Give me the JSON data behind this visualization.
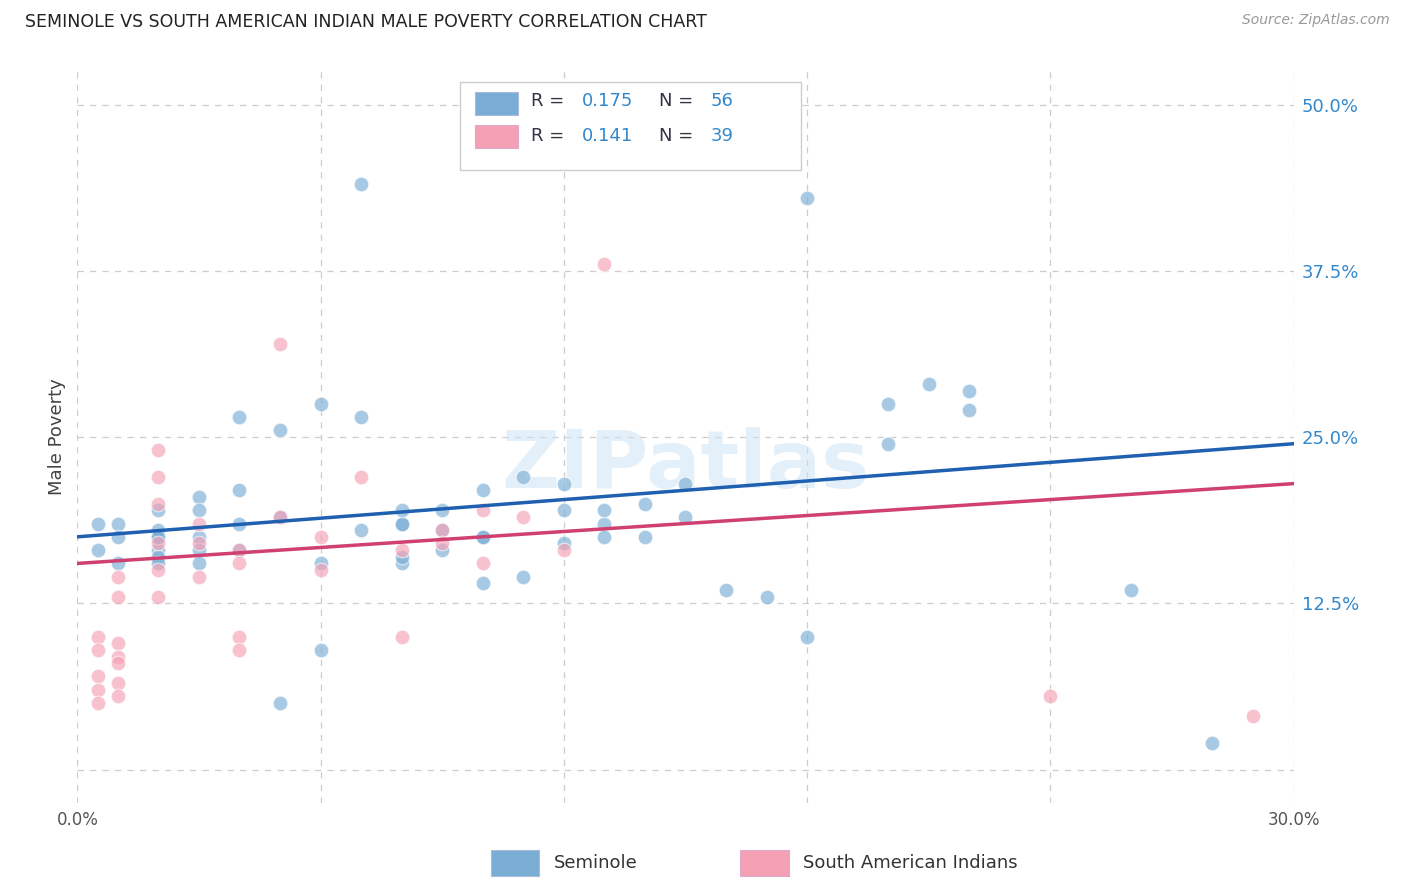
{
  "title": "SEMINOLE VS SOUTH AMERICAN INDIAN MALE POVERTY CORRELATION CHART",
  "source": "Source: ZipAtlas.com",
  "ylabel": "Male Poverty",
  "yticks": [
    0.0,
    0.125,
    0.25,
    0.375,
    0.5
  ],
  "ytick_labels": [
    "",
    "12.5%",
    "25.0%",
    "37.5%",
    "50.0%"
  ],
  "xlim": [
    0.0,
    0.3
  ],
  "ylim": [
    -0.025,
    0.525
  ],
  "legend_R_blue": "0.175",
  "legend_N_blue": "56",
  "legend_R_pink": "0.141",
  "legend_N_pink": "39",
  "blue_color": "#7aadd4",
  "pink_color": "#f4a0b5",
  "line_blue": "#2060b0",
  "line_pink": "#d04070",
  "watermark": "ZIPatlas",
  "legend_label_blue": "Seminole",
  "legend_label_pink": "South American Indians",
  "text_color_dark": "#333344",
  "text_color_blue": "#3388cc",
  "blue_x": [
    0.005,
    0.005,
    0.01,
    0.01,
    0.01,
    0.02,
    0.02,
    0.02,
    0.02,
    0.02,
    0.02,
    0.02,
    0.03,
    0.03,
    0.03,
    0.03,
    0.03,
    0.04,
    0.04,
    0.04,
    0.04,
    0.05,
    0.05,
    0.05,
    0.06,
    0.06,
    0.06,
    0.07,
    0.07,
    0.08,
    0.08,
    0.08,
    0.08,
    0.08,
    0.09,
    0.09,
    0.09,
    0.1,
    0.1,
    0.1,
    0.1,
    0.11,
    0.11,
    0.12,
    0.12,
    0.12,
    0.13,
    0.13,
    0.13,
    0.14,
    0.14,
    0.15,
    0.15,
    0.16,
    0.17,
    0.18,
    0.2,
    0.2,
    0.21,
    0.22,
    0.26,
    0.28,
    0.07,
    0.18,
    0.22
  ],
  "blue_y": [
    0.165,
    0.185,
    0.185,
    0.175,
    0.155,
    0.165,
    0.175,
    0.195,
    0.18,
    0.175,
    0.16,
    0.155,
    0.205,
    0.175,
    0.195,
    0.165,
    0.155,
    0.265,
    0.21,
    0.185,
    0.165,
    0.255,
    0.19,
    0.05,
    0.275,
    0.155,
    0.09,
    0.265,
    0.18,
    0.155,
    0.185,
    0.185,
    0.195,
    0.16,
    0.165,
    0.18,
    0.195,
    0.175,
    0.21,
    0.175,
    0.14,
    0.22,
    0.145,
    0.215,
    0.195,
    0.17,
    0.185,
    0.175,
    0.195,
    0.2,
    0.175,
    0.215,
    0.19,
    0.135,
    0.13,
    0.1,
    0.275,
    0.245,
    0.29,
    0.27,
    0.135,
    0.02,
    0.44,
    0.43,
    0.285
  ],
  "pink_x": [
    0.005,
    0.005,
    0.005,
    0.005,
    0.005,
    0.01,
    0.01,
    0.01,
    0.01,
    0.01,
    0.01,
    0.01,
    0.02,
    0.02,
    0.02,
    0.02,
    0.02,
    0.02,
    0.03,
    0.03,
    0.03,
    0.04,
    0.04,
    0.04,
    0.04,
    0.05,
    0.05,
    0.06,
    0.06,
    0.07,
    0.08,
    0.08,
    0.09,
    0.09,
    0.1,
    0.1,
    0.11,
    0.12,
    0.13,
    0.24,
    0.29
  ],
  "pink_y": [
    0.1,
    0.09,
    0.07,
    0.06,
    0.05,
    0.145,
    0.13,
    0.095,
    0.085,
    0.08,
    0.065,
    0.055,
    0.24,
    0.22,
    0.2,
    0.17,
    0.15,
    0.13,
    0.185,
    0.17,
    0.145,
    0.165,
    0.155,
    0.1,
    0.09,
    0.32,
    0.19,
    0.175,
    0.15,
    0.22,
    0.165,
    0.1,
    0.18,
    0.17,
    0.195,
    0.155,
    0.19,
    0.165,
    0.38,
    0.055,
    0.04
  ],
  "grid_xticks": [
    0.0,
    0.06,
    0.12,
    0.18,
    0.24,
    0.3
  ]
}
